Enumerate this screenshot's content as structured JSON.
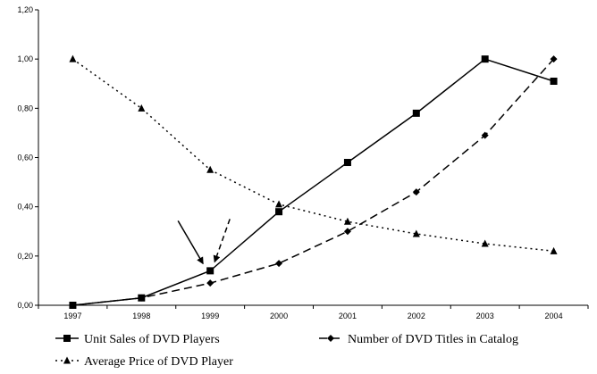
{
  "chart_data": {
    "type": "line",
    "title": "",
    "xlabel": "",
    "ylabel": "",
    "x": [
      "1997",
      "1998",
      "1999",
      "2000",
      "2001",
      "2002",
      "2003",
      "2004"
    ],
    "ylim": [
      0,
      1.2
    ],
    "yticks": [
      "0,00",
      "0,20",
      "0,40",
      "0,60",
      "0,80",
      "1,00",
      "1,20"
    ],
    "grid": false,
    "legend_position": "bottom",
    "series": [
      {
        "name": "Unit Sales of DVD Players",
        "values": [
          0.0,
          0.03,
          0.14,
          0.38,
          0.58,
          0.78,
          1.0,
          0.91
        ],
        "marker": "square",
        "dash": "solid"
      },
      {
        "name": "Number of DVD Titles in Catalog",
        "values": [
          0.0,
          0.03,
          0.09,
          0.17,
          0.3,
          0.46,
          0.69,
          1.0
        ],
        "marker": "diamond",
        "dash": "dashed"
      },
      {
        "name": "Average Price of DVD Player",
        "values": [
          1.0,
          0.8,
          0.55,
          0.41,
          0.34,
          0.29,
          0.25,
          0.22
        ],
        "marker": "triangle",
        "dash": "dotted"
      }
    ],
    "annotations": [
      {
        "type": "arrow",
        "style": "solid",
        "points_to": {
          "x": "1999",
          "y": 0.14
        }
      },
      {
        "type": "arrow",
        "style": "dashed",
        "points_to": {
          "x": "1999",
          "y": 0.14
        }
      }
    ]
  }
}
